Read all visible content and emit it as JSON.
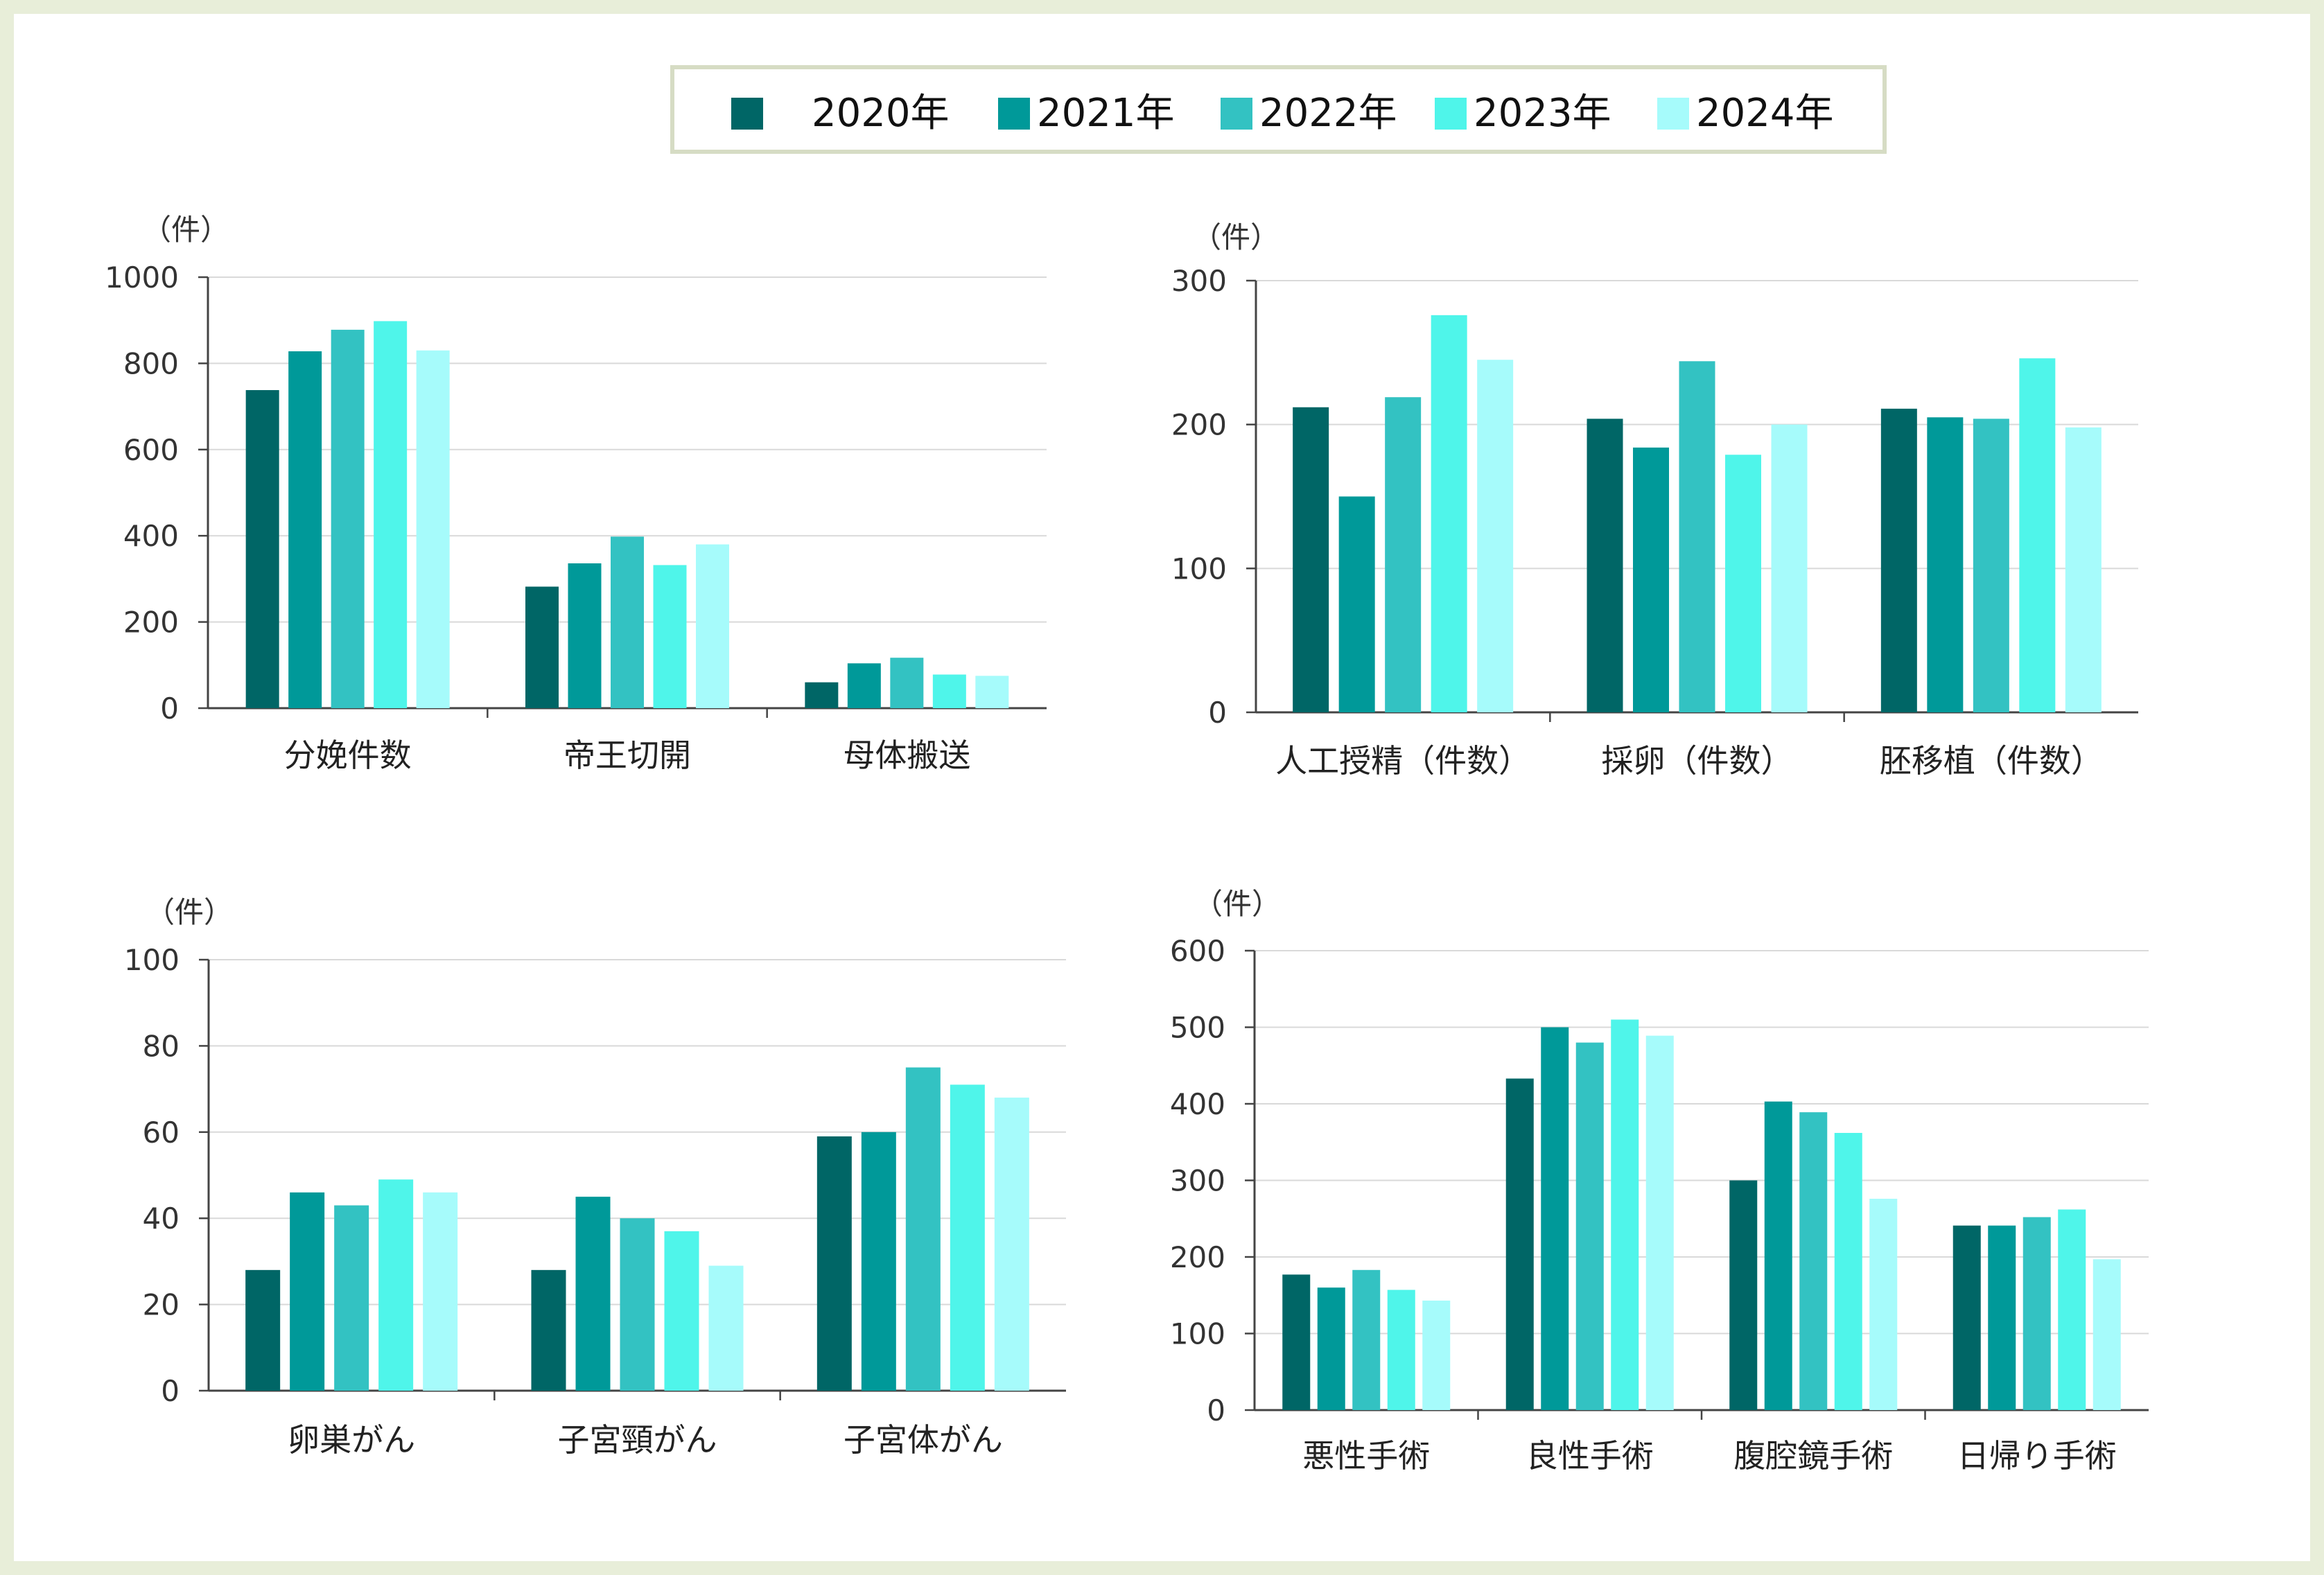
{
  "legend": {
    "items": [
      {
        "label": "2020年",
        "color": "#006666"
      },
      {
        "label": "2021年",
        "color": "#009999"
      },
      {
        "label": "2022年",
        "color": "#33c2c2"
      },
      {
        "label": "2023年",
        "color": "#4ff5ea"
      },
      {
        "label": "2024年",
        "color": "#a6fbfb"
      }
    ]
  },
  "chart_data": [
    {
      "type": "bar",
      "unit_label": "（件）",
      "categories": [
        "分娩件数",
        "帝王切開",
        "母体搬送"
      ],
      "ylim": [
        0,
        1000
      ],
      "yticks": [
        0,
        200,
        400,
        600,
        800,
        1000
      ],
      "grid": true,
      "series": [
        {
          "name": "2020年",
          "values": [
            738,
            282,
            60
          ]
        },
        {
          "name": "2021年",
          "values": [
            828,
            336,
            104
          ]
        },
        {
          "name": "2022年",
          "values": [
            878,
            398,
            117
          ]
        },
        {
          "name": "2023年",
          "values": [
            898,
            332,
            78
          ]
        },
        {
          "name": "2024年",
          "values": [
            830,
            380,
            75
          ]
        }
      ]
    },
    {
      "type": "bar",
      "unit_label": "（件）",
      "categories": [
        "人工授精（件数）",
        "採卵（件数）",
        "胚移植（件数）"
      ],
      "ylim": [
        0,
        300
      ],
      "yticks": [
        0,
        100,
        200,
        300
      ],
      "grid": true,
      "series": [
        {
          "name": "2020年",
          "values": [
            212,
            204,
            211
          ]
        },
        {
          "name": "2021年",
          "values": [
            150,
            184,
            205
          ]
        },
        {
          "name": "2022年",
          "values": [
            219,
            244,
            204
          ]
        },
        {
          "name": "2023年",
          "values": [
            276,
            179,
            246
          ]
        },
        {
          "name": "2024年",
          "values": [
            245,
            200,
            198
          ]
        }
      ]
    },
    {
      "type": "bar",
      "unit_label": "（件）",
      "categories": [
        "卵巣がん",
        "子宮頸がん",
        "子宮体がん"
      ],
      "ylim": [
        0,
        100
      ],
      "yticks": [
        0,
        20,
        40,
        60,
        80,
        100
      ],
      "grid": true,
      "series": [
        {
          "name": "2020年",
          "values": [
            28,
            28,
            59
          ]
        },
        {
          "name": "2021年",
          "values": [
            46,
            45,
            60
          ]
        },
        {
          "name": "2022年",
          "values": [
            43,
            40,
            75
          ]
        },
        {
          "name": "2023年",
          "values": [
            49,
            37,
            71
          ]
        },
        {
          "name": "2024年",
          "values": [
            46,
            29,
            68
          ]
        }
      ]
    },
    {
      "type": "bar",
      "unit_label": "（件）",
      "categories": [
        "悪性手術",
        "良性手術",
        "腹腔鏡手術",
        "日帰り手術"
      ],
      "ylim": [
        0,
        600
      ],
      "yticks": [
        0,
        100,
        200,
        300,
        400,
        500,
        600
      ],
      "grid": true,
      "series": [
        {
          "name": "2020年",
          "values": [
            177,
            433,
            300,
            241
          ]
        },
        {
          "name": "2021年",
          "values": [
            160,
            500,
            403,
            241
          ]
        },
        {
          "name": "2022年",
          "values": [
            183,
            480,
            389,
            252
          ]
        },
        {
          "name": "2023年",
          "values": [
            157,
            510,
            362,
            262
          ]
        },
        {
          "name": "2024年",
          "values": [
            143,
            489,
            276,
            197
          ]
        }
      ]
    }
  ]
}
